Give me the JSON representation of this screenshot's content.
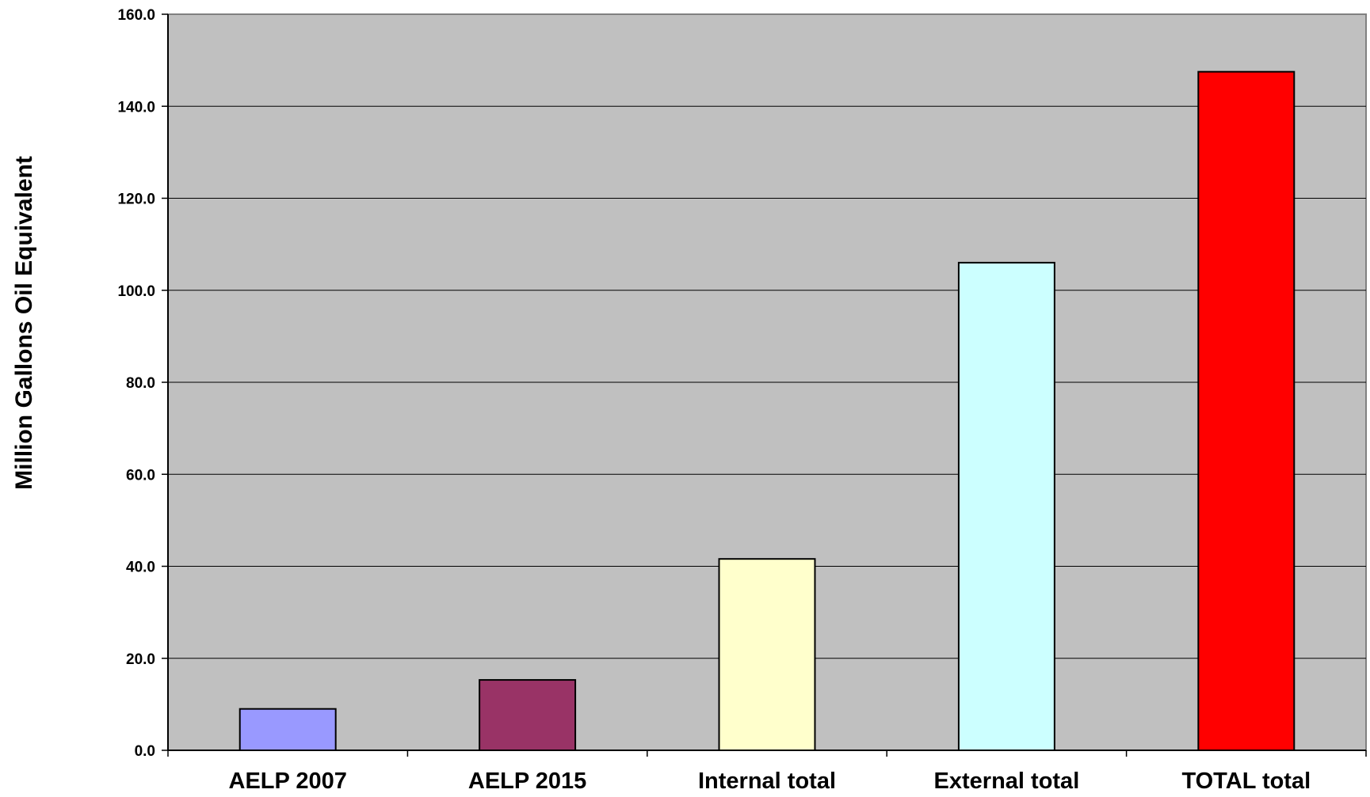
{
  "chart_data": {
    "type": "bar",
    "title": "",
    "xlabel": "",
    "ylabel": "Million Gallons Oil Equivalent",
    "categories": [
      "AELP 2007",
      "AELP 2015",
      "Internal total",
      "External total",
      "TOTAL total"
    ],
    "values": [
      9.0,
      15.3,
      41.6,
      106.0,
      147.5
    ],
    "bar_colors": [
      "#9999ff",
      "#993366",
      "#ffffcc",
      "#ccffff",
      "#ff0000"
    ],
    "plot_background": "#c0c0c0",
    "ylim": [
      0,
      160
    ],
    "yticks": [
      0,
      20,
      40,
      60,
      80,
      100,
      120,
      140,
      160
    ],
    "ytick_labels": [
      "0.0",
      "20.0",
      "40.0",
      "60.0",
      "80.0",
      "100.0",
      "120.0",
      "140.0",
      "160.0"
    ],
    "grid": true,
    "legend": "none"
  }
}
